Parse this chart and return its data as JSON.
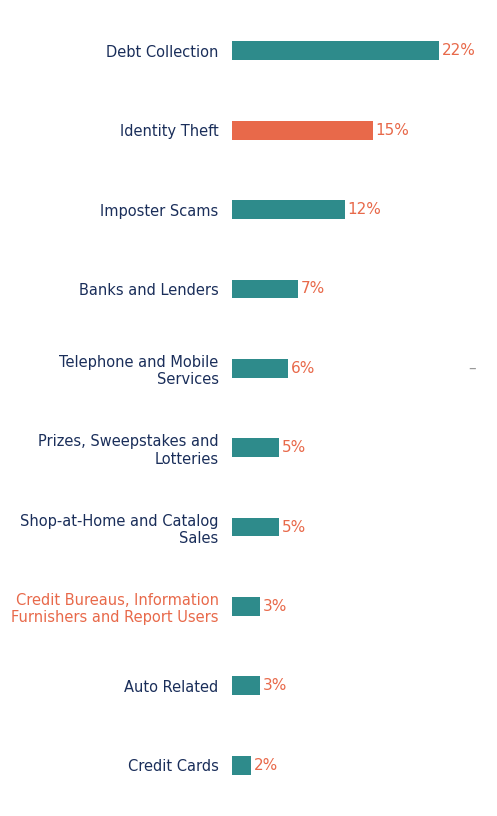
{
  "categories": [
    "Credit Cards",
    "Auto Related",
    "Credit Bureaus, Information\nFurnishers and Report Users",
    "Shop-at-Home and Catalog\nSales",
    "Prizes, Sweepstakes and\nLotteries",
    "Telephone and Mobile\nServices",
    "Banks and Lenders",
    "Imposter Scams",
    "Identity Theft",
    "Debt Collection"
  ],
  "label_colors": [
    "#1a2e5a",
    "#1a2e5a",
    "#e8694a",
    "#1a2e5a",
    "#1a2e5a",
    "#1a2e5a",
    "#1a2e5a",
    "#1a2e5a",
    "#1a2e5a",
    "#1a2e5a"
  ],
  "values": [
    2,
    3,
    3,
    5,
    5,
    6,
    7,
    12,
    15,
    22
  ],
  "bar_colors": [
    "#2e8b8b",
    "#2e8b8b",
    "#2e8b8b",
    "#2e8b8b",
    "#2e8b8b",
    "#2e8b8b",
    "#2e8b8b",
    "#2e8b8b",
    "#e8694a",
    "#2e8b8b"
  ],
  "value_label_color": "#e8694a",
  "xlim": [
    0,
    27
  ],
  "background_color": "#ffffff",
  "bar_height": 0.38,
  "figsize": [
    4.97,
    8.16
  ],
  "dpi": 100,
  "label_fontsize": 10.5,
  "value_fontsize": 11
}
